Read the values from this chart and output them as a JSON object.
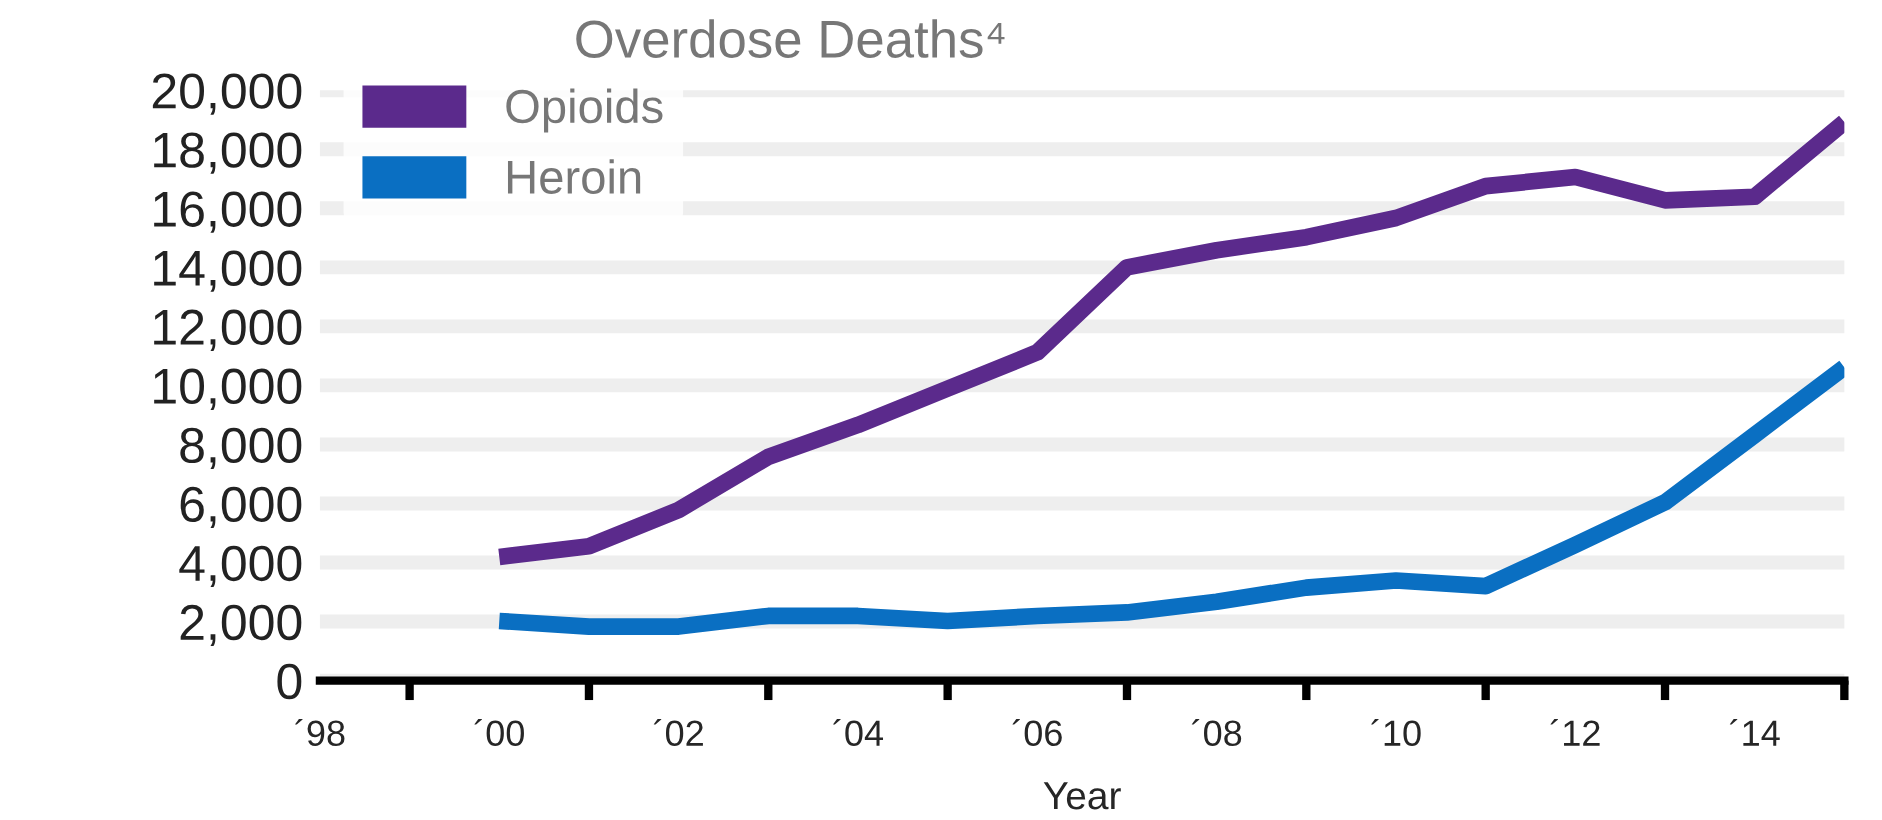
{
  "chart_data": {
    "type": "line",
    "title": "Overdose Deaths⁴",
    "xlabel": "Year",
    "categories": [
      "´98",
      null,
      "´00",
      null,
      "´02",
      null,
      "´04",
      null,
      "´06",
      null,
      "´08",
      null,
      "´10",
      null,
      "´12",
      null,
      "´14",
      null
    ],
    "series": [
      {
        "name": "Opioids",
        "color": "#5b2a8c",
        "values": [
          null,
          null,
          4190,
          4550,
          5780,
          7580,
          8660,
          9890,
          11120,
          14000,
          14580,
          15020,
          15670,
          16750,
          17060,
          16270,
          16390,
          18920
        ]
      },
      {
        "name": "Heroin",
        "color": "#0a6fc2",
        "values": [
          null,
          null,
          2020,
          1830,
          1830,
          2190,
          2190,
          2020,
          2190,
          2310,
          2670,
          3150,
          3390,
          3200,
          4600,
          6040,
          8320,
          10610
        ]
      }
    ],
    "ylim": [
      0,
      20000
    ],
    "yticks": [
      0,
      {
        "value": 2000,
        "label": "2,000"
      },
      {
        "value": 4000,
        "label": "4,000"
      },
      {
        "value": 6000,
        "label": "6,000"
      },
      {
        "value": 8000,
        "label": "8,000"
      },
      {
        "value": 10000,
        "label": "10,000"
      },
      {
        "value": 12000,
        "label": "12,000"
      },
      {
        "value": 14000,
        "label": "14,000"
      },
      {
        "value": 16000,
        "label": "16,000"
      },
      {
        "value": 18000,
        "label": "18,000"
      },
      {
        "value": 20000,
        "label": "20,000"
      }
    ],
    "grid": "y",
    "legend": "top left",
    "marker": "none",
    "line_style": "solid"
  }
}
